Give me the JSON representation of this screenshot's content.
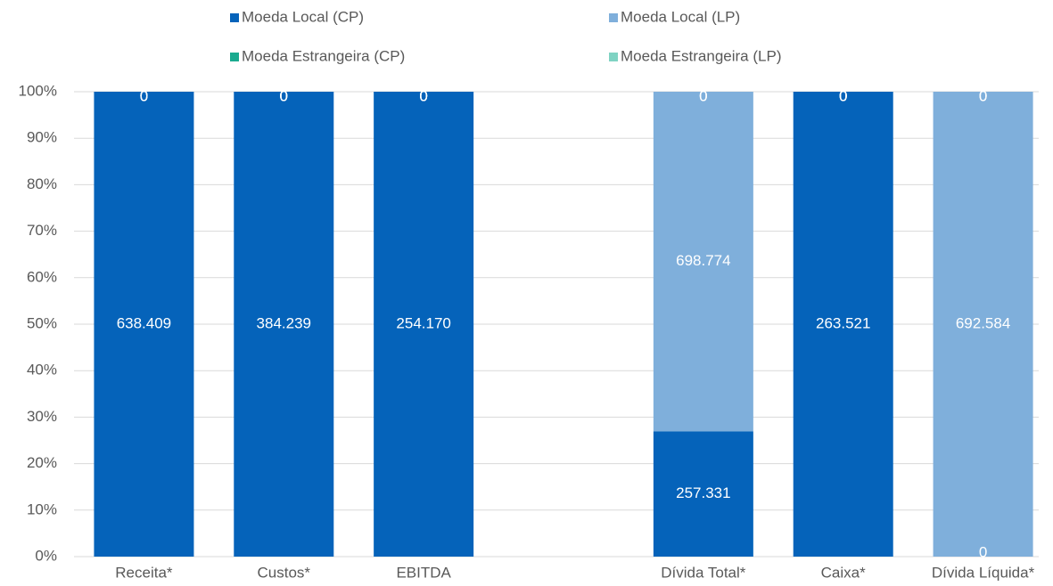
{
  "chart_data": {
    "type": "bar",
    "stacked": "percent",
    "categories": [
      "Receita*",
      "Custos*",
      "EBITDA",
      null,
      "Dívida Total*",
      "Caixa*",
      "Dívida Líquida*"
    ],
    "series": [
      {
        "name": "Moeda Local (CP)",
        "color": "#0563BA",
        "values": [
          638409,
          384239,
          254170,
          null,
          257331,
          263521,
          0
        ],
        "value_labels": [
          "638.409",
          "384.239",
          "254.170",
          null,
          "257.331",
          "263.521",
          "0"
        ]
      },
      {
        "name": "Moeda Local (LP)",
        "color": "#7FAFDB",
        "values": [
          0,
          0,
          0,
          null,
          698774,
          0,
          692584
        ],
        "value_labels": [
          "0",
          "0",
          "0",
          null,
          "698.774",
          "0",
          "692.584"
        ]
      },
      {
        "name": "Moeda Estrangeira (CP)",
        "color": "#1BAA8F",
        "values": [
          0,
          0,
          0,
          null,
          0,
          0,
          0
        ],
        "value_labels": [
          "0",
          "0",
          "0",
          null,
          "0",
          "0",
          "0"
        ]
      },
      {
        "name": "Moeda Estrangeira (LP)",
        "color": "#7FD3C3",
        "values": [
          0,
          0,
          0,
          null,
          0,
          0,
          0
        ],
        "value_labels": [
          "0",
          "0",
          "0",
          null,
          "0",
          "0",
          "0"
        ]
      }
    ],
    "ylim": [
      0,
      100
    ],
    "yticks": [
      {
        "value": 0,
        "label": "0%"
      },
      {
        "value": 10,
        "label": "10%"
      },
      {
        "value": 20,
        "label": "20%"
      },
      {
        "value": 30,
        "label": "30%"
      },
      {
        "value": 40,
        "label": "40%"
      },
      {
        "value": 50,
        "label": "50%"
      },
      {
        "value": 60,
        "label": "60%"
      },
      {
        "value": 70,
        "label": "70%"
      },
      {
        "value": 80,
        "label": "80%"
      },
      {
        "value": 90,
        "label": "90%"
      },
      {
        "value": 100,
        "label": "100%"
      }
    ],
    "grid": true,
    "legend": "top"
  }
}
